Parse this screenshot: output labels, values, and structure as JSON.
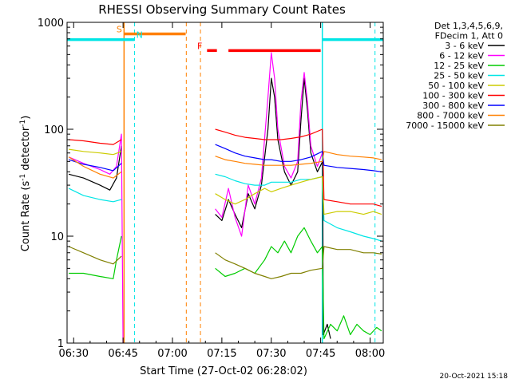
{
  "chart_data": {
    "type": "line",
    "title": "RHESSI Observing Summary Count Rates",
    "xlabel": "Start Time (27-Oct-02 06:28:02)",
    "ylabel_main": "Count Rate (s",
    "ylabel_sup": "-1",
    "ylabel_rest": " detector",
    "ylabel_sup2": "-1",
    "ylabel_end": ")",
    "xlim_min": [
      28,
      124
    ],
    "yscale": "log",
    "ylim": [
      1,
      1000
    ],
    "x_ticks": [
      {
        "min": 30,
        "label": "06:30"
      },
      {
        "min": 45,
        "label": "06:45"
      },
      {
        "min": 60,
        "label": "07:00"
      },
      {
        "min": 75,
        "label": "07:15"
      },
      {
        "min": 90,
        "label": "07:30"
      },
      {
        "min": 105,
        "label": "07:45"
      },
      {
        "min": 120,
        "label": "08:00"
      }
    ],
    "y_ticks": [
      {
        "value": 1,
        "label": "1"
      },
      {
        "value": 10,
        "label": "10"
      },
      {
        "value": 100,
        "label": "100"
      },
      {
        "value": 1000,
        "label": "1000"
      }
    ],
    "legend_header": [
      "Det 1,3,4,5,6,9,",
      "FDecim 1, Att 0"
    ],
    "series": [
      {
        "name": "3 - 6 keV",
        "color": "#000000",
        "points": [
          [
            28.5,
            38
          ],
          [
            33,
            35
          ],
          [
            38,
            30
          ],
          [
            41,
            27
          ],
          [
            43,
            35
          ],
          [
            44.5,
            70
          ],
          [
            45,
            null
          ],
          [
            73,
            16
          ],
          [
            75,
            14
          ],
          [
            77,
            22
          ],
          [
            79,
            16
          ],
          [
            81,
            12
          ],
          [
            83,
            25
          ],
          [
            85,
            18
          ],
          [
            87,
            30
          ],
          [
            89,
            100
          ],
          [
            90,
            300
          ],
          [
            91,
            200
          ],
          [
            92,
            80
          ],
          [
            94,
            40
          ],
          [
            96,
            30
          ],
          [
            98,
            40
          ],
          [
            99,
            120
          ],
          [
            100,
            300
          ],
          [
            101,
            150
          ],
          [
            102,
            60
          ],
          [
            104,
            40
          ],
          [
            105.6,
            50
          ],
          [
            105.8,
            1.2
          ],
          [
            107,
            1.5
          ],
          [
            108,
            1.1
          ],
          [
            108.5,
            null
          ]
        ]
      },
      {
        "name": "6 - 12 keV",
        "color": "#ff00ff",
        "points": [
          [
            28.5,
            55
          ],
          [
            33,
            48
          ],
          [
            38,
            42
          ],
          [
            41,
            38
          ],
          [
            43,
            45
          ],
          [
            44.5,
            90
          ],
          [
            45,
            1
          ],
          [
            45.5,
            null
          ],
          [
            73,
            18
          ],
          [
            75,
            15
          ],
          [
            77,
            28
          ],
          [
            79,
            15
          ],
          [
            81,
            10
          ],
          [
            83,
            30
          ],
          [
            85,
            20
          ],
          [
            87,
            35
          ],
          [
            89,
            200
          ],
          [
            90,
            520
          ],
          [
            91,
            300
          ],
          [
            92,
            100
          ],
          [
            94,
            45
          ],
          [
            96,
            35
          ],
          [
            98,
            50
          ],
          [
            99,
            180
          ],
          [
            100,
            340
          ],
          [
            101,
            180
          ],
          [
            102,
            70
          ],
          [
            104,
            45
          ],
          [
            105.5,
            60
          ],
          [
            106,
            null
          ]
        ]
      },
      {
        "name": "12 - 25 keV",
        "color": "#00cc00",
        "points": [
          [
            28.5,
            4.5
          ],
          [
            33,
            4.5
          ],
          [
            38,
            4.2
          ],
          [
            42,
            4
          ],
          [
            43,
            6
          ],
          [
            44.5,
            10
          ],
          [
            45,
            null
          ],
          [
            73,
            5
          ],
          [
            76,
            4.2
          ],
          [
            79,
            4.5
          ],
          [
            82,
            5
          ],
          [
            85,
            4.5
          ],
          [
            88,
            6
          ],
          [
            90,
            8
          ],
          [
            92,
            7
          ],
          [
            94,
            9
          ],
          [
            96,
            7
          ],
          [
            98,
            10
          ],
          [
            100,
            12
          ],
          [
            102,
            9
          ],
          [
            104,
            7
          ],
          [
            105.5,
            8
          ],
          [
            106,
            1.1
          ],
          [
            108,
            1.5
          ],
          [
            110,
            1.3
          ],
          [
            112,
            1.8
          ],
          [
            114,
            1.2
          ],
          [
            116,
            1.5
          ],
          [
            118,
            1.3
          ],
          [
            120,
            1.2
          ],
          [
            122,
            1.4
          ],
          [
            123.5,
            1.3
          ]
        ]
      },
      {
        "name": "25 - 50 keV",
        "color": "#00e5e5",
        "points": [
          [
            28.5,
            28
          ],
          [
            33,
            24
          ],
          [
            38,
            22
          ],
          [
            42,
            21
          ],
          [
            44.5,
            22
          ],
          [
            45,
            null
          ],
          [
            73,
            38
          ],
          [
            76,
            36
          ],
          [
            79,
            33
          ],
          [
            82,
            31
          ],
          [
            85,
            30
          ],
          [
            88,
            30
          ],
          [
            90,
            32
          ],
          [
            93,
            32
          ],
          [
            96,
            32
          ],
          [
            99,
            34
          ],
          [
            102,
            34
          ],
          [
            105.5,
            36
          ],
          [
            106,
            14
          ],
          [
            110,
            12
          ],
          [
            114,
            11
          ],
          [
            118,
            10
          ],
          [
            121,
            9.5
          ],
          [
            123.5,
            9
          ]
        ]
      },
      {
        "name": "50 - 100 keV",
        "color": "#cccc00",
        "points": [
          [
            28.5,
            65
          ],
          [
            33,
            62
          ],
          [
            38,
            60
          ],
          [
            42,
            58
          ],
          [
            44.5,
            62
          ],
          [
            45,
            null
          ],
          [
            73,
            25
          ],
          [
            76,
            22
          ],
          [
            79,
            20
          ],
          [
            82,
            22
          ],
          [
            85,
            25
          ],
          [
            88,
            28
          ],
          [
            90,
            26
          ],
          [
            93,
            28
          ],
          [
            96,
            30
          ],
          [
            99,
            32
          ],
          [
            102,
            34
          ],
          [
            105.5,
            36
          ],
          [
            106,
            16
          ],
          [
            110,
            17
          ],
          [
            114,
            17
          ],
          [
            118,
            16
          ],
          [
            121,
            17
          ],
          [
            123.5,
            16
          ]
        ]
      },
      {
        "name": "100 - 300 keV",
        "color": "#ff0000",
        "points": [
          [
            28.5,
            80
          ],
          [
            33,
            78
          ],
          [
            38,
            74
          ],
          [
            42,
            72
          ],
          [
            44.5,
            80
          ],
          [
            45,
            null
          ],
          [
            73,
            100
          ],
          [
            76,
            94
          ],
          [
            79,
            88
          ],
          [
            82,
            84
          ],
          [
            85,
            82
          ],
          [
            88,
            80
          ],
          [
            90,
            80
          ],
          [
            93,
            80
          ],
          [
            96,
            82
          ],
          [
            99,
            85
          ],
          [
            102,
            90
          ],
          [
            105.5,
            100
          ],
          [
            106,
            22
          ],
          [
            110,
            21
          ],
          [
            114,
            20
          ],
          [
            118,
            20
          ],
          [
            121,
            20
          ],
          [
            123.5,
            19
          ]
        ]
      },
      {
        "name": "300 - 800 keV",
        "color": "#0000ff",
        "points": [
          [
            28.5,
            52
          ],
          [
            33,
            47
          ],
          [
            38,
            44
          ],
          [
            42,
            41
          ],
          [
            44.5,
            48
          ],
          [
            45,
            null
          ],
          [
            73,
            72
          ],
          [
            76,
            66
          ],
          [
            79,
            60
          ],
          [
            82,
            56
          ],
          [
            85,
            54
          ],
          [
            88,
            52
          ],
          [
            90,
            52
          ],
          [
            93,
            50
          ],
          [
            96,
            50
          ],
          [
            99,
            52
          ],
          [
            102,
            55
          ],
          [
            105.5,
            62
          ],
          [
            106,
            46
          ],
          [
            110,
            44
          ],
          [
            114,
            43
          ],
          [
            118,
            42
          ],
          [
            121,
            41
          ],
          [
            123.5,
            40
          ]
        ]
      },
      {
        "name": "800 - 7000 keV",
        "color": "#ff8000",
        "points": [
          [
            28.5,
            55
          ],
          [
            33,
            45
          ],
          [
            38,
            38
          ],
          [
            42,
            35
          ],
          [
            44.5,
            40
          ],
          [
            45,
            null
          ],
          [
            73,
            56
          ],
          [
            76,
            52
          ],
          [
            79,
            50
          ],
          [
            82,
            48
          ],
          [
            85,
            47
          ],
          [
            88,
            46
          ],
          [
            90,
            46
          ],
          [
            93,
            46
          ],
          [
            96,
            46
          ],
          [
            99,
            47
          ],
          [
            102,
            48
          ],
          [
            105.5,
            50
          ],
          [
            106,
            62
          ],
          [
            110,
            58
          ],
          [
            114,
            56
          ],
          [
            118,
            55
          ],
          [
            121,
            54
          ],
          [
            123.5,
            52
          ]
        ]
      },
      {
        "name": "7000 - 15000 keV",
        "color": "#808000",
        "points": [
          [
            28.5,
            8
          ],
          [
            33,
            7
          ],
          [
            38,
            6
          ],
          [
            42,
            5.5
          ],
          [
            44.5,
            6.5
          ],
          [
            45,
            null
          ],
          [
            73,
            7
          ],
          [
            76,
            6
          ],
          [
            79,
            5.5
          ],
          [
            82,
            5
          ],
          [
            85,
            4.5
          ],
          [
            88,
            4.2
          ],
          [
            90,
            4
          ],
          [
            93,
            4.2
          ],
          [
            96,
            4.5
          ],
          [
            99,
            4.5
          ],
          [
            102,
            4.8
          ],
          [
            105.5,
            5
          ],
          [
            106,
            8
          ],
          [
            110,
            7.5
          ],
          [
            114,
            7.5
          ],
          [
            118,
            7
          ],
          [
            121,
            7
          ],
          [
            123.5,
            6.8
          ]
        ]
      }
    ],
    "flags": [
      {
        "label": "S",
        "color": "#ff8000",
        "segments": [
          [
            45.3,
            64
          ]
        ],
        "level": 780,
        "label_min": 43
      },
      {
        "label": "N",
        "color": "#00e5e5",
        "segments": [
          [
            28,
            48.5
          ],
          [
            105.5,
            124
          ]
        ],
        "level": 690,
        "label_min": 49
      },
      {
        "label": "F",
        "color": "#ff0000",
        "segments": [
          [
            70.5,
            73.5
          ],
          [
            77,
            105
          ]
        ],
        "level": 545,
        "label_min": 67.5
      }
    ],
    "vlines": [
      {
        "min": 48.5,
        "color": "#00e5e5"
      },
      {
        "min": 64.2,
        "color": "#ff8000"
      },
      {
        "min": 68.5,
        "color": "#ff8000"
      },
      {
        "min": 121.5,
        "color": "#00e5e5"
      }
    ],
    "solid_vlines": [
      {
        "min": 45.3,
        "color": "#ff8000"
      },
      {
        "min": 105.5,
        "color": "#00e5e5"
      }
    ],
    "timestamp": "20-Oct-2021 15:18"
  }
}
